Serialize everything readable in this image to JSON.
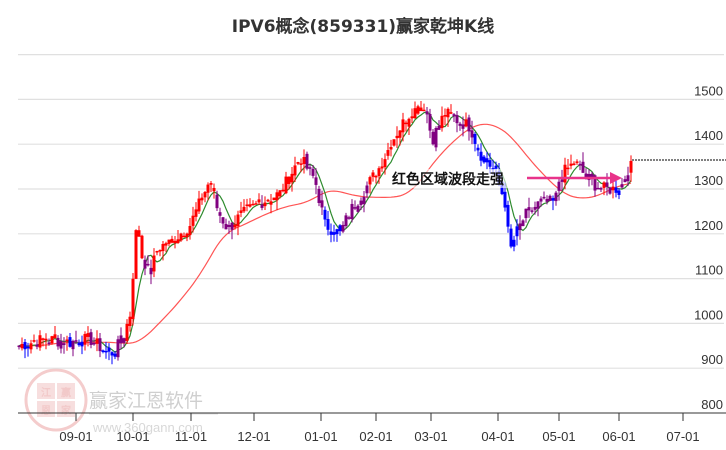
{
  "title": "IPV6概念(859331)赢家乾坤K线",
  "annotation": {
    "text": "红色区域波段走强",
    "arrow_color": "#e8338a"
  },
  "watermark": {
    "brand": "赢家江恩软件",
    "url": "www.360gann.com",
    "seal_chars": [
      "江",
      "赢",
      "恩",
      "家"
    ]
  },
  "colors": {
    "up_strong": "#ff0000",
    "down_weak": "#0000ff",
    "neutral": "#800080",
    "fast_line": "#2e8b2e",
    "slow_line": "#ff5555",
    "grid": "#e0e0e0",
    "axis": "#333333"
  },
  "last_price_line": 1358,
  "chart_data": {
    "type": "candlestick",
    "title": "IPV6概念(859331)赢家乾坤K线",
    "xlabel": "",
    "ylabel": "",
    "ylim": [
      800,
      1620
    ],
    "y_ticks": [
      800,
      900,
      1000,
      1100,
      1200,
      1300,
      1400,
      1500
    ],
    "x_ticks": [
      "09-01",
      "10-01",
      "11-01",
      "12-01",
      "01-01",
      "02-01",
      "03-01",
      "04-01",
      "05-01",
      "06-01",
      "07-01"
    ],
    "grid": true,
    "legend": "none",
    "series": [
      {
        "name": "close (approx.)",
        "points": [
          [
            "08-15",
            950
          ],
          [
            "08-25",
            962
          ],
          [
            "09-01",
            960
          ],
          [
            "09-10",
            975
          ],
          [
            "09-20",
            958
          ],
          [
            "09-25",
            935
          ],
          [
            "09-28",
            960
          ],
          [
            "10-08",
            1020
          ],
          [
            "10-09",
            1230
          ],
          [
            "10-15",
            1130
          ],
          [
            "10-22",
            1110
          ],
          [
            "10-31",
            1180
          ],
          [
            "11-08",
            1220
          ],
          [
            "11-15",
            1300
          ],
          [
            "11-20",
            1240
          ],
          [
            "11-28",
            1210
          ],
          [
            "12-10",
            1260
          ],
          [
            "12-20",
            1290
          ],
          [
            "12-27",
            1370
          ],
          [
            "01-02",
            1320
          ],
          [
            "01-08",
            1220
          ],
          [
            "01-18",
            1200
          ],
          [
            "01-25",
            1260
          ],
          [
            "02-05",
            1300
          ],
          [
            "02-15",
            1380
          ],
          [
            "02-25",
            1470
          ],
          [
            "03-01",
            1490
          ],
          [
            "03-05",
            1410
          ],
          [
            "03-12",
            1470
          ],
          [
            "03-20",
            1440
          ],
          [
            "03-27",
            1370
          ],
          [
            "04-01",
            1330
          ],
          [
            "04-03",
            1180
          ],
          [
            "04-08",
            1160
          ],
          [
            "04-15",
            1240
          ],
          [
            "04-25",
            1270
          ],
          [
            "05-01",
            1280
          ],
          [
            "05-08",
            1330
          ],
          [
            "05-15",
            1360
          ],
          [
            "05-22",
            1310
          ],
          [
            "05-29",
            1300
          ],
          [
            "06-05",
            1300
          ],
          [
            "06-10",
            1340
          ]
        ]
      },
      {
        "name": "fast line (green)",
        "points_desc": "short moving average tracking price"
      },
      {
        "name": "slow line (red)",
        "points_desc": "long moving average, smoother oscillation"
      }
    ],
    "annotations": [
      {
        "text": "红色区域波段走强",
        "x": "04-01~06-05",
        "y": 1310
      }
    ],
    "reference_line": {
      "value": 1358,
      "style": "dashed",
      "from": "06-10"
    }
  }
}
